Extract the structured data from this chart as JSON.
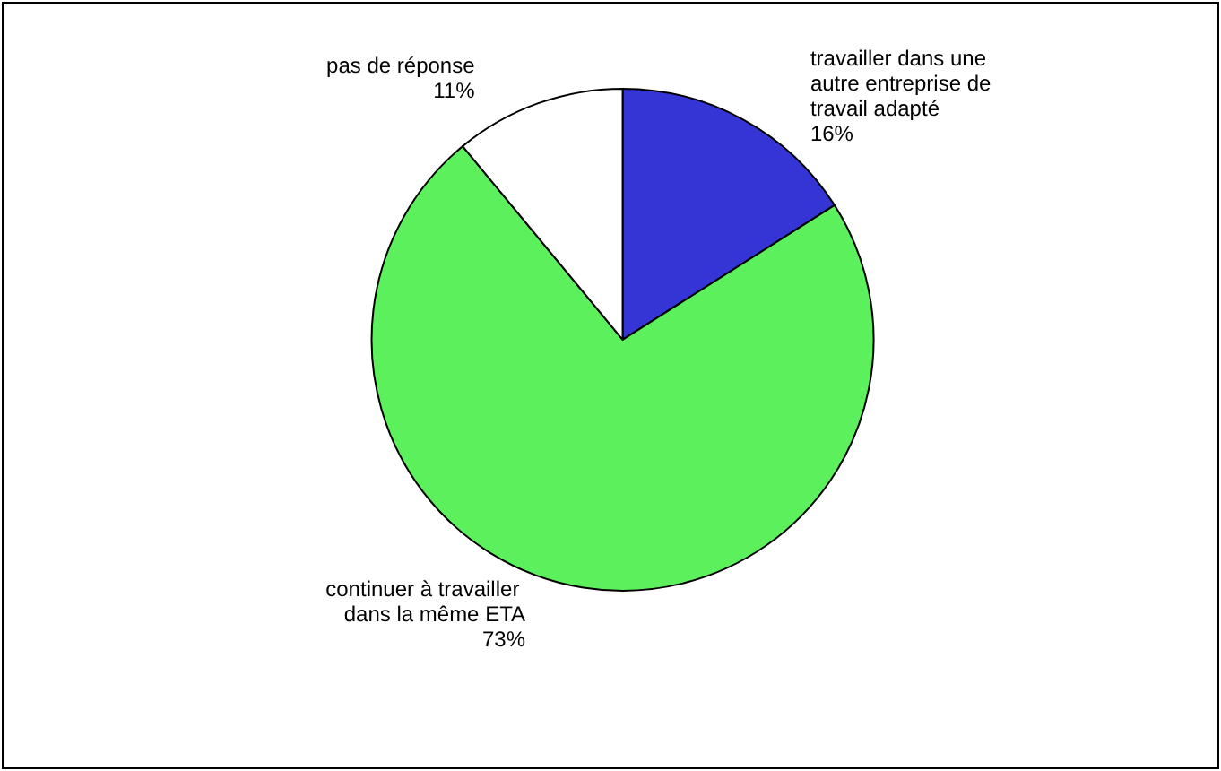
{
  "chart_data": {
    "type": "pie",
    "categories": [
      "travailler dans une autre entreprise de travail adapté",
      "continuer à travailler dans la même ETA",
      "pas de réponse"
    ],
    "values": [
      16,
      73,
      11
    ],
    "value_labels": [
      "16%",
      "73%",
      "11%"
    ],
    "colors": [
      "#3535d6",
      "#5cf05c",
      "#ffffff"
    ],
    "legend": false
  }
}
